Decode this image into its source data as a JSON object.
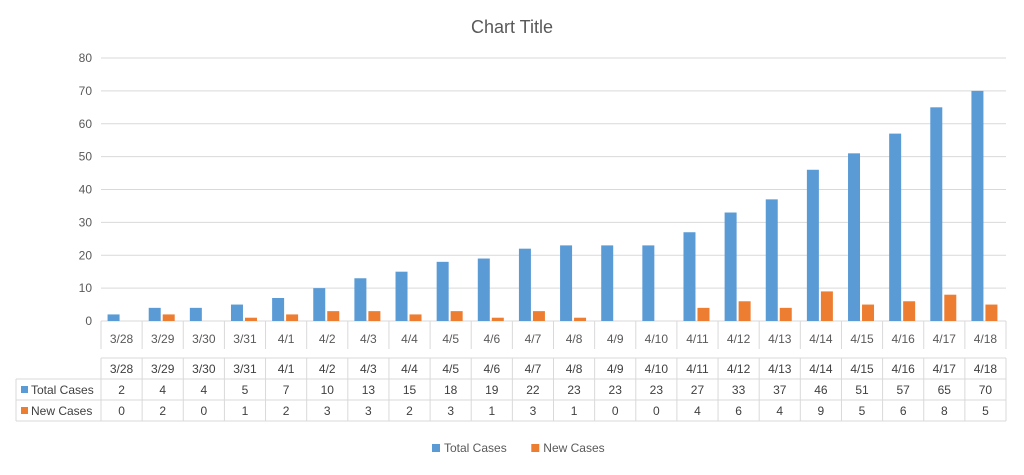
{
  "chart_data": {
    "type": "bar",
    "title": "Chart Title",
    "categories": [
      "3/28",
      "3/29",
      "3/30",
      "3/31",
      "4/1",
      "4/2",
      "4/3",
      "4/4",
      "4/5",
      "4/6",
      "4/7",
      "4/8",
      "4/9",
      "4/10",
      "4/11",
      "4/12",
      "4/13",
      "4/14",
      "4/15",
      "4/16",
      "4/17",
      "4/18"
    ],
    "series": [
      {
        "name": "Total Cases",
        "color": "#5B9BD5",
        "values": [
          2,
          4,
          4,
          5,
          7,
          10,
          13,
          15,
          18,
          19,
          22,
          23,
          23,
          23,
          27,
          33,
          37,
          46,
          51,
          57,
          65,
          70
        ]
      },
      {
        "name": "New Cases",
        "color": "#ED7D31",
        "values": [
          0,
          2,
          0,
          1,
          2,
          3,
          3,
          2,
          3,
          1,
          3,
          1,
          0,
          0,
          4,
          6,
          4,
          9,
          5,
          6,
          8,
          5
        ]
      }
    ],
    "ylim": [
      0,
      80
    ],
    "yticks": [
      0,
      10,
      20,
      30,
      40,
      50,
      60,
      70,
      80
    ],
    "grid": true,
    "legend": "bottom",
    "data_table": true
  }
}
